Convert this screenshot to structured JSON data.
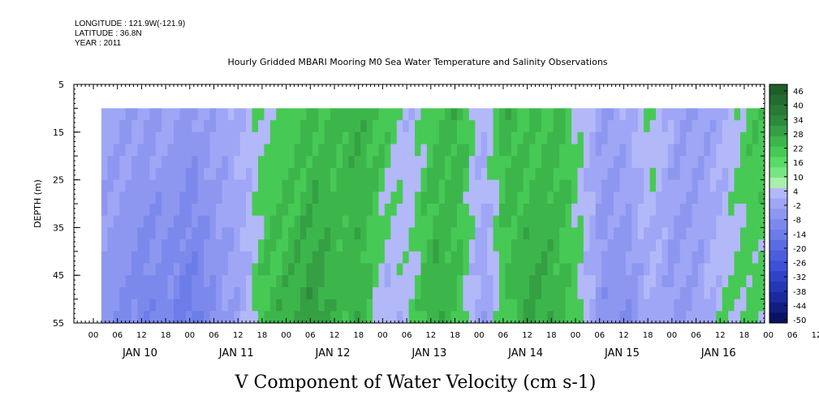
{
  "header": {
    "longitude": "LONGITUDE : 121.9W(-121.9)",
    "latitude": "LATITUDE : 36.8N",
    "year": "YEAR : 2011"
  },
  "title": "Hourly Gridded MBARI Mooring M0 Sea Water Temperature and Salinity Observations",
  "caption": "V Component of Water Velocity (cm s-1)",
  "chart_data": {
    "type": "heatmap",
    "title": "Hourly Gridded MBARI Mooring M0 Sea Water Temperature and Salinity Observations",
    "xlabel": "",
    "ylabel": "DEPTH (m)",
    "caption": "V Component of Water Velocity (cm s-1)",
    "y_axis": {
      "ticks": [
        5,
        15,
        25,
        35,
        45,
        55
      ],
      "range": [
        5,
        55
      ],
      "reversed": true
    },
    "data_depth_range": [
      10,
      55
    ],
    "x_axis": {
      "hour_ticks": [
        "00",
        "06",
        "12",
        "18",
        "00",
        "06",
        "12",
        "18",
        "00",
        "06",
        "12",
        "18",
        "00",
        "06",
        "12",
        "18",
        "00",
        "06",
        "12",
        "18",
        "00",
        "06",
        "12",
        "18",
        "00",
        "06",
        "12",
        "18",
        "00",
        "06",
        "12",
        "18"
      ],
      "day_labels": [
        "JAN 10",
        "JAN 11",
        "JAN 12",
        "JAN 13",
        "JAN 14",
        "JAN 15",
        "JAN 16"
      ]
    },
    "colorbar": {
      "levels": [
        "46",
        "40",
        "34",
        "28",
        "22",
        "16",
        "10",
        "4",
        "-2",
        "-8",
        "-14",
        "-20",
        "-26",
        "-32",
        "-38",
        "-44",
        "-50"
      ],
      "level_values": [
        46,
        40,
        34,
        28,
        22,
        16,
        10,
        4,
        -2,
        -8,
        -14,
        -20,
        -26,
        -32,
        -38,
        -44,
        -50
      ],
      "positive_colors": [
        "#1f5e2a",
        "#236b30",
        "#287a36",
        "#2d8a3c",
        "#34a043",
        "#3cb64b",
        "#47c955",
        "#5ada66",
        "#78e585",
        "#a8f0a8"
      ],
      "negative_colors": [
        "#b3b8f8",
        "#9ea6f5",
        "#8d97f0",
        "#7c89ec",
        "#6c7ce8",
        "#5a6ce4",
        "#4b5ede",
        "#3d50d6",
        "#3043c8",
        "#2537b6",
        "#1a2a9e",
        "#101e80",
        "#081462"
      ]
    },
    "series": [
      {
        "name": "",
        "profile_time_hours": [
          0,
          6,
          12,
          18,
          24,
          30,
          36,
          42,
          48,
          54,
          60,
          66,
          72,
          78,
          84,
          90,
          96,
          102,
          108,
          114,
          120,
          126,
          132,
          138,
          144,
          150,
          156,
          162
        ],
        "surface_values": [
          -4,
          -6,
          -8,
          -6,
          -10,
          -6,
          -2,
          4,
          6,
          10,
          12,
          14,
          10,
          -2,
          10,
          14,
          -2,
          14,
          8,
          12,
          4,
          -8,
          -4,
          6,
          -6,
          -8,
          -4,
          8
        ],
        "bottom_values": [
          -10,
          -14,
          -20,
          -18,
          -24,
          -12,
          -6,
          12,
          16,
          22,
          12,
          14,
          -4,
          4,
          16,
          10,
          -8,
          8,
          18,
          14,
          6,
          -12,
          -14,
          -4,
          -10,
          -6,
          4,
          6
        ]
      }
    ]
  }
}
